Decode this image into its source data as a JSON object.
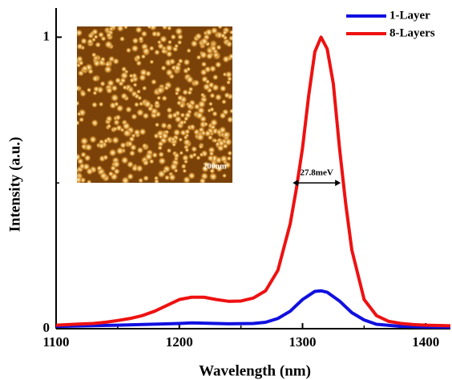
{
  "chart_data": {
    "type": "line",
    "xlabel": "Wavelength (nm)",
    "ylabel": "Intensity (a.u.)",
    "xlim": [
      1100,
      1420
    ],
    "ylim": [
      0,
      1.1
    ],
    "xticks": [
      1100,
      1200,
      1300,
      1400
    ],
    "minor_xticks": [
      1150,
      1250,
      1350
    ],
    "yticks": [
      0,
      1
    ],
    "minor_yticks": [
      0.5
    ],
    "legend": "upper right",
    "series": [
      {
        "name": "1-Layer",
        "color": "#1010e0",
        "x": [
          1100,
          1150,
          1200,
          1210,
          1220,
          1240,
          1260,
          1270,
          1280,
          1290,
          1300,
          1310,
          1315,
          1320,
          1330,
          1340,
          1350,
          1360,
          1380,
          1400,
          1420
        ],
        "values": [
          0.008,
          0.012,
          0.018,
          0.02,
          0.019,
          0.017,
          0.018,
          0.022,
          0.035,
          0.06,
          0.1,
          0.128,
          0.13,
          0.125,
          0.095,
          0.055,
          0.03,
          0.015,
          0.008,
          0.006,
          0.005
        ]
      },
      {
        "name": "8-Layers",
        "color": "#ee1111",
        "x": [
          1100,
          1110,
          1120,
          1130,
          1140,
          1150,
          1160,
          1170,
          1180,
          1190,
          1200,
          1210,
          1220,
          1230,
          1240,
          1250,
          1260,
          1270,
          1280,
          1290,
          1295,
          1300,
          1305,
          1310,
          1315,
          1320,
          1325,
          1330,
          1335,
          1340,
          1350,
          1360,
          1370,
          1380,
          1390,
          1400,
          1410,
          1420
        ],
        "values": [
          0.012,
          0.014,
          0.016,
          0.018,
          0.022,
          0.028,
          0.035,
          0.045,
          0.06,
          0.08,
          0.1,
          0.108,
          0.108,
          0.1,
          0.094,
          0.095,
          0.105,
          0.13,
          0.2,
          0.36,
          0.48,
          0.62,
          0.8,
          0.95,
          1.0,
          0.96,
          0.84,
          0.62,
          0.43,
          0.27,
          0.1,
          0.045,
          0.025,
          0.018,
          0.014,
          0.012,
          0.011,
          0.01
        ]
      }
    ],
    "annotation": {
      "text": "27.8meV",
      "x": [
        1292,
        1331
      ],
      "y": 0.5
    },
    "inset": {
      "scale_label": "200nm"
    }
  }
}
